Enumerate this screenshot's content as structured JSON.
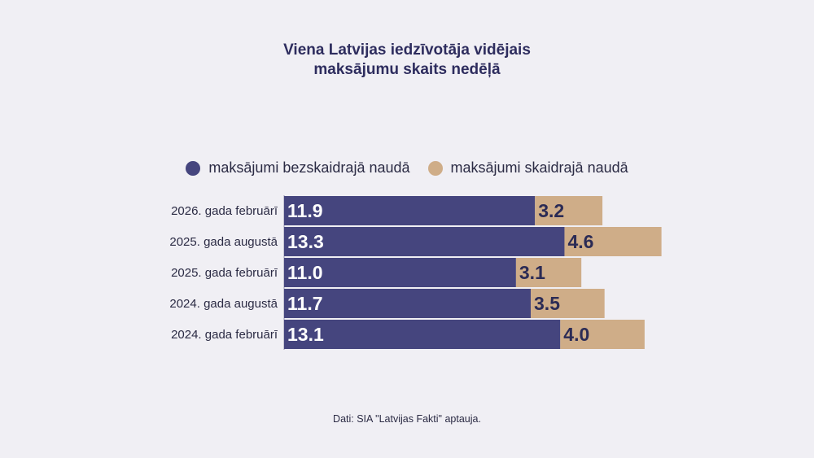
{
  "title_line1": "Viena Latvijas iedzīvotāja vidējais",
  "title_line2": "maksājumu skaits nedēļā",
  "legend": {
    "cashless": "maksājumi bezskaidrajā naudā",
    "cash": "maksājumi skaidrajā naudā"
  },
  "colors": {
    "cashless": "#45457e",
    "cash": "#cfad88",
    "background": "#f0eff4"
  },
  "source": "Dati: SIA \"Latvijas Fakti\" aptauja.",
  "chart_data": {
    "type": "bar",
    "orientation": "horizontal",
    "stacked": true,
    "title": "Viena Latvijas iedzīvotāja vidējais maksājumu skaits nedēļā",
    "categories": [
      "2026. gada februārī",
      "2025. gada augustā",
      "2025. gada februārī",
      "2024. gada augustā",
      "2024. gada februārī"
    ],
    "series": [
      {
        "name": "maksājumi bezskaidrajā naudā",
        "values": [
          11.9,
          13.3,
          11.0,
          11.7,
          13.1
        ]
      },
      {
        "name": "maksājumi skaidrajā naudā",
        "values": [
          3.2,
          4.6,
          3.1,
          3.5,
          4.0
        ]
      }
    ],
    "value_labels": [
      [
        "11.9",
        "13.3",
        "11.0",
        "11.7",
        "13.1"
      ],
      [
        "3.2",
        "4.6",
        "3.1",
        "3.5",
        "4.0"
      ]
    ],
    "legend_position": "top",
    "grid": false
  }
}
